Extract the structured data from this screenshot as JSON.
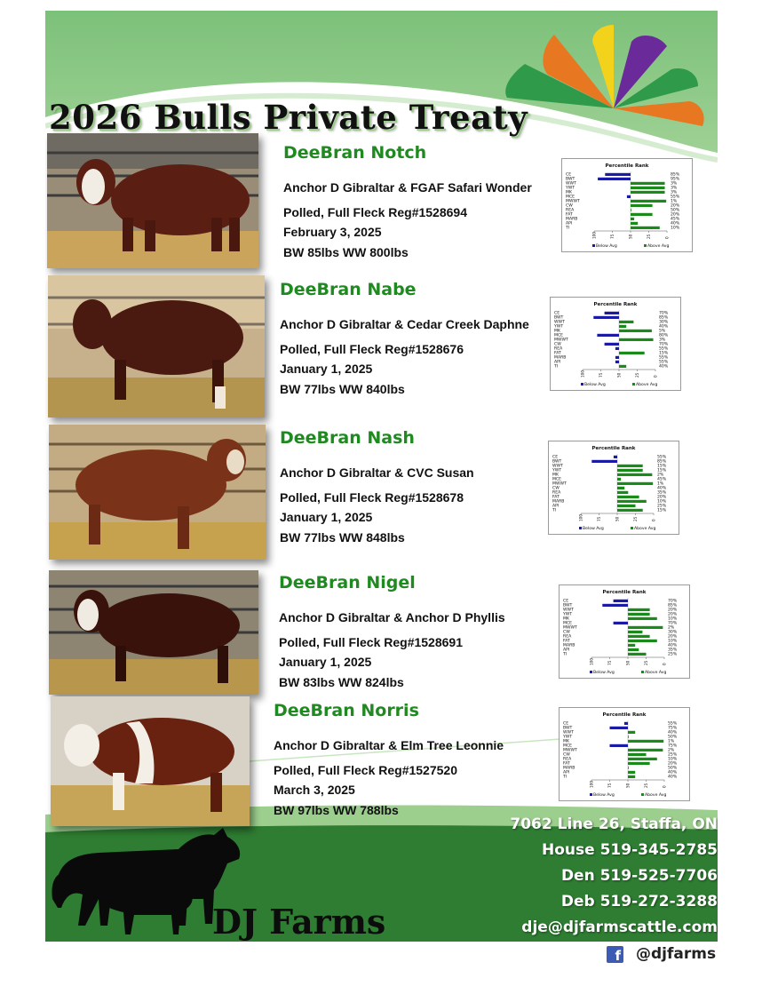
{
  "title": "2026 Bulls Private Treaty",
  "colors": {
    "brand_green": "#1f8a1f",
    "band_green": "#2e7d32",
    "light_green": "#8cc78a",
    "bar_below": "#1a1aa6",
    "bar_above": "#1a8a1a"
  },
  "chart_labels": {
    "title": "Percentile Rank",
    "traits": [
      "CE",
      "BWT",
      "WWT",
      "YWT",
      "MK",
      "MCE",
      "MWWT",
      "CW",
      "REA",
      "FAT",
      "MARB",
      "API",
      "TI"
    ],
    "ticks": [
      "100",
      "75",
      "50",
      "25",
      "0"
    ],
    "legend_below": "Below Avg",
    "legend_above": "Above Avg"
  },
  "bulls": [
    {
      "name": "DeeBran Notch",
      "pedigree": "Anchor D Gibraltar & FGAF Safari Wonder",
      "registration": "Polled, Full Fleck   Reg#1528694",
      "dob": "February 3, 2025",
      "weights": "BW 85lbs      WW    800lbs",
      "chart_data": {
        "type": "bar",
        "title": "Percentile Rank",
        "categories": [
          "CE",
          "BWT",
          "WWT",
          "YWT",
          "MK",
          "MCE",
          "MWWT",
          "CW",
          "REA",
          "FAT",
          "MARB",
          "API",
          "TI"
        ],
        "percentiles": [
          "85%",
          "95%",
          "3%",
          "3%",
          "3%",
          "55%",
          "1%",
          "20%",
          "50%",
          "20%",
          "45%",
          "40%",
          "10%"
        ],
        "values": [
          85,
          95,
          3,
          3,
          3,
          55,
          1,
          20,
          50,
          20,
          45,
          40,
          10
        ]
      }
    },
    {
      "name": "DeeBran Nabe",
      "pedigree": "Anchor D Gibraltar & Cedar Creek Daphne",
      "registration": "Polled, Full Fleck    Reg#1528676",
      "dob": "January 1, 2025",
      "weights": "BW 77lbs      WW    840lbs",
      "chart_data": {
        "type": "bar",
        "title": "Percentile Rank",
        "categories": [
          "CE",
          "BWT",
          "WWT",
          "YWT",
          "MK",
          "MCE",
          "MWWT",
          "CW",
          "REA",
          "FAT",
          "MARB",
          "API",
          "TI"
        ],
        "percentiles": [
          "70%",
          "85%",
          "30%",
          "40%",
          "5%",
          "80%",
          "3%",
          "70%",
          "55%",
          "15%",
          "55%",
          "55%",
          "40%"
        ],
        "values": [
          70,
          85,
          30,
          40,
          5,
          80,
          3,
          70,
          55,
          15,
          55,
          55,
          40
        ]
      }
    },
    {
      "name": "DeeBran Nash",
      "pedigree": "Anchor D Gibraltar & CVC Susan",
      "registration": "Polled, Full Fleck    Reg#1528678",
      "dob": "January 1, 2025",
      "weights": "BW 77lbs      WW    848lbs",
      "chart_data": {
        "type": "bar",
        "title": "Percentile Rank",
        "categories": [
          "CE",
          "BWT",
          "WWT",
          "YWT",
          "MK",
          "MCE",
          "MWWT",
          "CW",
          "REA",
          "FAT",
          "MARB",
          "API",
          "TI"
        ],
        "percentiles": [
          "55%",
          "85%",
          "15%",
          "15%",
          "2%",
          "45%",
          "1%",
          "40%",
          "35%",
          "20%",
          "10%",
          "25%",
          "15%"
        ],
        "values": [
          55,
          85,
          15,
          15,
          2,
          45,
          1,
          40,
          35,
          20,
          10,
          25,
          15
        ]
      }
    },
    {
      "name": "DeeBran Nigel",
      "pedigree": "Anchor D Gibraltar & Anchor D Phyllis",
      "registration": "Polled, Full Fleck    Reg#1528691",
      "dob": "January 1, 2025",
      "weights": "BW 83lbs      WW    824lbs",
      "chart_data": {
        "type": "bar",
        "title": "Percentile Rank",
        "categories": [
          "CE",
          "BWT",
          "WWT",
          "YWT",
          "MK",
          "MCE",
          "MWWT",
          "CW",
          "REA",
          "FAT",
          "MARB",
          "API",
          "TI"
        ],
        "percentiles": [
          "70%",
          "85%",
          "20%",
          "20%",
          "10%",
          "70%",
          "2%",
          "30%",
          "20%",
          "10%",
          "40%",
          "35%",
          "25%"
        ],
        "values": [
          70,
          85,
          20,
          20,
          10,
          70,
          2,
          30,
          20,
          10,
          40,
          35,
          25
        ]
      }
    },
    {
      "name": "DeeBran Norris",
      "pedigree": "Anchor D Gibraltar & Elm Tree Leonnie",
      "registration": "Polled, Full Fleck    Reg#1527520",
      "dob": "March 3, 2025",
      "weights": "BW 97lbs      WW    788lbs",
      "chart_data": {
        "type": "bar",
        "title": "Percentile Rank",
        "categories": [
          "CE",
          "BWT",
          "WWT",
          "YWT",
          "MK",
          "MCE",
          "MWWT",
          "CW",
          "REA",
          "FAT",
          "MARB",
          "API",
          "TI"
        ],
        "percentiles": [
          "55%",
          "75%",
          "40%",
          "50%",
          "1%",
          "75%",
          "2%",
          "25%",
          "10%",
          "20%",
          "50%",
          "40%",
          "40%"
        ],
        "values": [
          55,
          75,
          40,
          50,
          1,
          75,
          2,
          25,
          10,
          20,
          50,
          40,
          40
        ]
      }
    }
  ],
  "contact": {
    "address": "7062 Line 26, Staffa, ON",
    "house": "House 519-345-2785",
    "den": "Den 519-525-7706",
    "deb": "Deb 519-272-3288",
    "email": "dje@djfarmscattle.com"
  },
  "farm_name": "DJ Farms",
  "social_handle": "@djfarms",
  "facebook_glyph": "f"
}
